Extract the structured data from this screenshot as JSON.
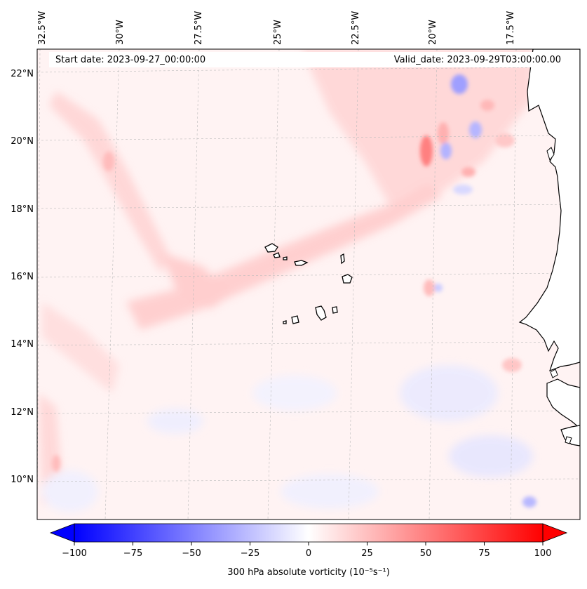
{
  "header": {
    "start_date": "Start date: 2023-09-27_00:00:00",
    "valid_date": "Valid_date: 2023-09-29T03:00:00.00"
  },
  "axes": {
    "lon_labels": [
      "32.5°W",
      "30°W",
      "27.5°W",
      "25°W",
      "22.5°W",
      "20°W",
      "17.5°W"
    ],
    "lat_labels": [
      "22°N",
      "20°N",
      "18°N",
      "16°N",
      "14°N",
      "12°N",
      "10°N"
    ]
  },
  "colorbar": {
    "ticks": [
      "−100",
      "−75",
      "−50",
      "−25",
      "0",
      "25",
      "50",
      "75",
      "100"
    ],
    "tick_values": [
      -100,
      -75,
      -50,
      -25,
      0,
      25,
      50,
      75,
      100
    ],
    "min": -100,
    "max": 100,
    "label": "300 hPa absolute vorticity (10⁻⁵s⁻¹)",
    "colormap": "bwr",
    "low_color": "#0000ff",
    "mid_color": "#ffffff",
    "high_color": "#ff0000"
  },
  "map": {
    "land_color": "#ffffff",
    "coast_color": "#000000",
    "grid_color": "#bbbbbb"
  }
}
